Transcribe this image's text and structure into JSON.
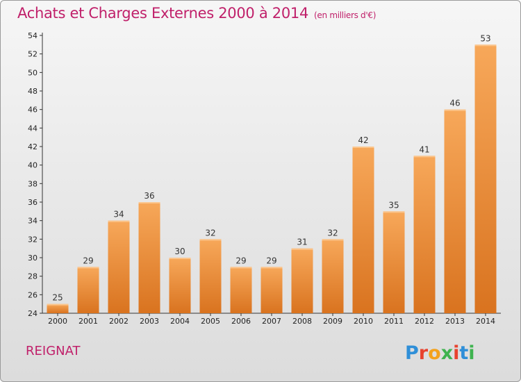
{
  "title": "Achats et Charges Externes 2000 à 2014",
  "subtitle": "(en milliers d'€)",
  "commune": "REIGNAT",
  "logo": "Proxiti",
  "colors": {
    "title": "#c0206a",
    "bar_top": "#f7a85a",
    "bar_bottom": "#d9731f",
    "axis": "#333333",
    "logo_letters": [
      "#2f8fd8",
      "#e8432e",
      "#f4a21c",
      "#3fb34f",
      "#e8432e",
      "#2f8fd8",
      "#3fb34f"
    ]
  },
  "chart_data": {
    "type": "bar",
    "categories": [
      "2000",
      "2001",
      "2002",
      "2003",
      "2004",
      "2005",
      "2006",
      "2007",
      "2008",
      "2009",
      "2010",
      "2011",
      "2012",
      "2013",
      "2014"
    ],
    "values": [
      25,
      29,
      34,
      36,
      30,
      32,
      29,
      29,
      31,
      32,
      42,
      35,
      41,
      46,
      53
    ],
    "ylim": [
      24,
      54
    ],
    "yticks": [
      24,
      26,
      28,
      30,
      32,
      34,
      36,
      38,
      40,
      42,
      44,
      46,
      48,
      50,
      52,
      54
    ],
    "grid": false,
    "data_labels": true
  }
}
